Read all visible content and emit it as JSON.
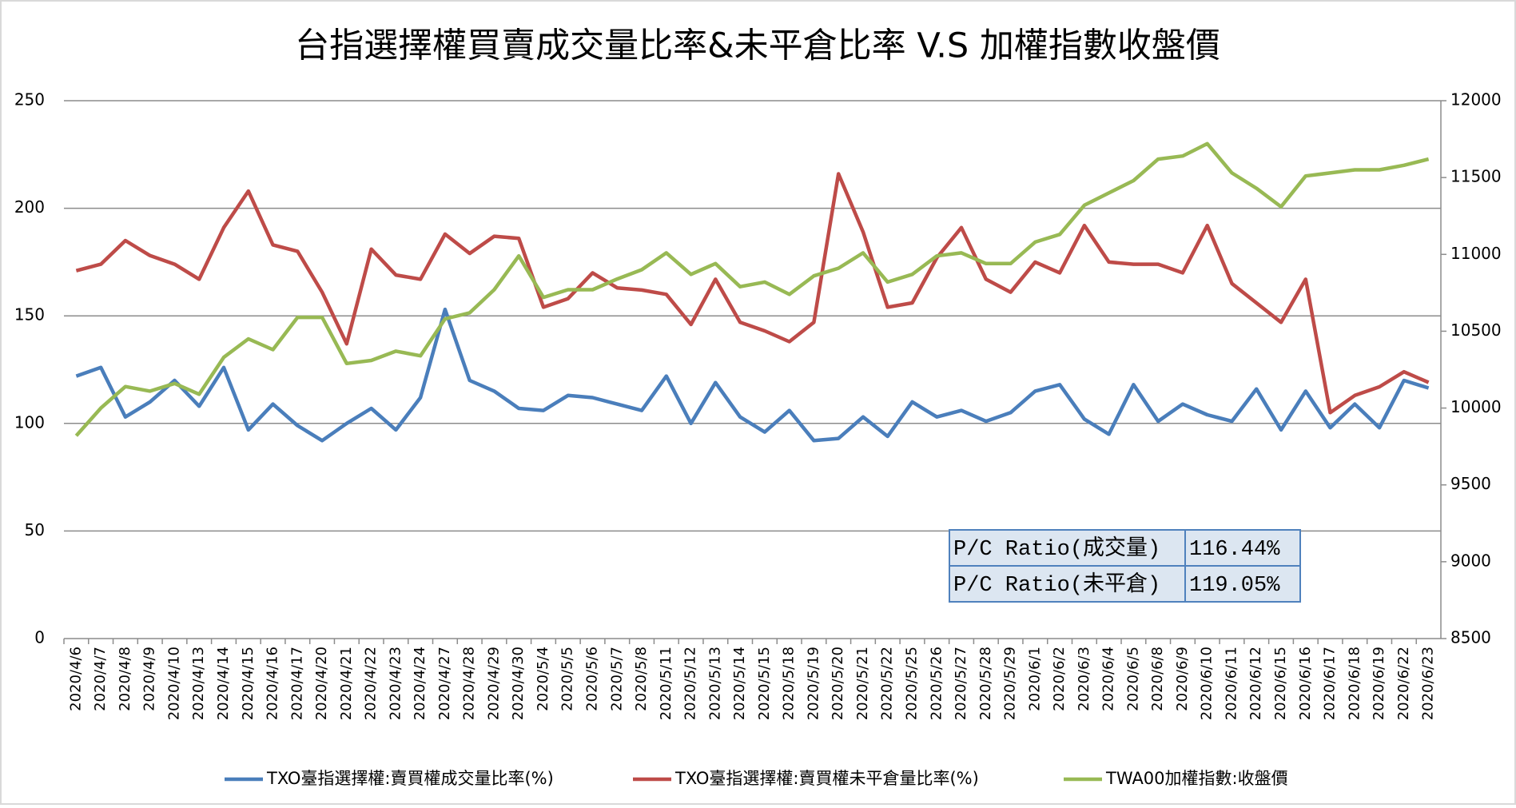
{
  "chart_data": {
    "type": "line",
    "title": "台指選擇權買賣成交量比率&未平倉比率 V.S 加權指數收盤價",
    "categories": [
      "2020/4/6",
      "2020/4/7",
      "2020/4/8",
      "2020/4/9",
      "2020/4/10",
      "2020/4/13",
      "2020/4/14",
      "2020/4/15",
      "2020/4/16",
      "2020/4/17",
      "2020/4/20",
      "2020/4/21",
      "2020/4/22",
      "2020/4/23",
      "2020/4/24",
      "2020/4/27",
      "2020/4/28",
      "2020/4/29",
      "2020/4/30",
      "2020/5/4",
      "2020/5/5",
      "2020/5/6",
      "2020/5/7",
      "2020/5/8",
      "2020/5/11",
      "2020/5/12",
      "2020/5/13",
      "2020/5/14",
      "2020/5/15",
      "2020/5/18",
      "2020/5/19",
      "2020/5/20",
      "2020/5/21",
      "2020/5/22",
      "2020/5/25",
      "2020/5/26",
      "2020/5/27",
      "2020/5/28",
      "2020/5/29",
      "2020/6/1",
      "2020/6/2",
      "2020/6/3",
      "2020/6/4",
      "2020/6/5",
      "2020/6/8",
      "2020/6/9",
      "2020/6/10",
      "2020/6/11",
      "2020/6/12",
      "2020/6/15",
      "2020/6/16",
      "2020/6/17",
      "2020/6/18",
      "2020/6/19",
      "2020/6/22",
      "2020/6/23"
    ],
    "series": [
      {
        "name": "TXO臺指選擇權:賣買權成交量比率(%)",
        "color": "#4a7ebb",
        "values": [
          122,
          126,
          103,
          110,
          120,
          108,
          126,
          97,
          109,
          99,
          92,
          100,
          107,
          97,
          112,
          153,
          120,
          115,
          107,
          106,
          113,
          112,
          109,
          106,
          122,
          100,
          119,
          103,
          96,
          106,
          92,
          93,
          103,
          94,
          110,
          103,
          106,
          101,
          105,
          115,
          118,
          102,
          95,
          118,
          101,
          109,
          104,
          101,
          116,
          97,
          115,
          98,
          109,
          98,
          120,
          116.44
        ]
      },
      {
        "name": "TXO臺指選擇權:賣買權未平倉量比率(%)",
        "color": "#be4b48",
        "values": [
          171,
          174,
          185,
          178,
          174,
          167,
          191,
          208,
          183,
          180,
          161,
          137,
          181,
          169,
          167,
          188,
          179,
          187,
          186,
          154,
          158,
          170,
          163,
          162,
          160,
          146,
          167,
          147,
          143,
          138,
          147,
          216,
          189,
          154,
          156,
          177,
          191,
          167,
          161,
          175,
          170,
          192,
          175,
          174,
          174,
          170,
          192,
          165,
          156,
          147,
          167,
          105,
          113,
          117,
          124,
          119.05
        ]
      },
      {
        "name": "TWA00加權指數:收盤價",
        "color": "#98b954",
        "axis": "y2",
        "values": [
          9820,
          10000,
          10140,
          10110,
          10160,
          10090,
          10330,
          10450,
          10380,
          10590,
          10590,
          10290,
          10310,
          10370,
          10340,
          10580,
          10620,
          10770,
          10990,
          10720,
          10770,
          10770,
          10840,
          10900,
          11010,
          10870,
          10940,
          10790,
          10820,
          10740,
          10860,
          10910,
          11010,
          10820,
          10870,
          10990,
          11010,
          10940,
          10940,
          11080,
          11130,
          11320,
          11400,
          11480,
          11620,
          11640,
          11720,
          11530,
          11430,
          11310,
          11510,
          11530,
          11550,
          11550,
          11580,
          11620
        ]
      }
    ],
    "ylim": [
      0,
      250
    ],
    "yticks": [
      0,
      50,
      100,
      150,
      200,
      250
    ],
    "y2lim": [
      8500,
      12000
    ],
    "y2ticks": [
      8500,
      9000,
      9500,
      10000,
      10500,
      11000,
      11500,
      12000
    ],
    "grid": true,
    "legend": "bottom"
  },
  "table": {
    "rows": [
      [
        "P/C Ratio(成交量)",
        "116.44%"
      ],
      [
        "P/C Ratio(未平倉)",
        "119.05%"
      ]
    ]
  }
}
